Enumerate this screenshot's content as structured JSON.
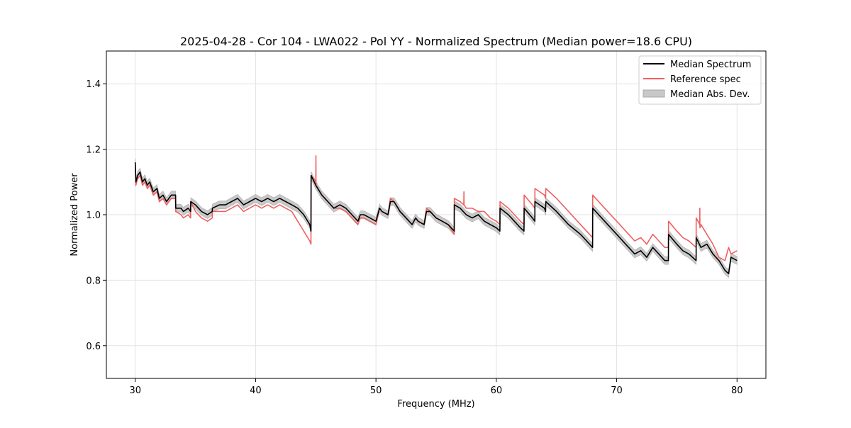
{
  "chart_data": {
    "type": "line",
    "title": "2025-04-28 - Cor 104 - LWA022 - Pol YY - Normalized Spectrum (Median power=18.6 CPU)",
    "xlabel": "Frequency (MHz)",
    "ylabel": "Normalized Power",
    "xlim": [
      27.6,
      82.4
    ],
    "ylim": [
      0.5,
      1.5
    ],
    "xticks": [
      30,
      40,
      50,
      60,
      70,
      80
    ],
    "yticks": [
      0.6,
      0.8,
      1.0,
      1.2,
      1.4
    ],
    "xtick_labels": [
      "30",
      "40",
      "50",
      "60",
      "70",
      "80"
    ],
    "ytick_labels": [
      "0.6",
      "0.8",
      "1.0",
      "1.2",
      "1.4"
    ],
    "grid": true,
    "legend_position": "top-right",
    "legend": [
      "Median Spectrum",
      "Reference spec",
      "Median Abs. Dev."
    ],
    "colors": {
      "median": "#000000",
      "reference": "#f06060",
      "mad_fill": "#c8c8c8",
      "mad_edge": "#a8a8a8",
      "grid": "#e3e3e3"
    },
    "series": [
      {
        "name": "Median Spectrum",
        "x": [
          30.0,
          30.05,
          30.2,
          30.4,
          30.6,
          30.8,
          31.0,
          31.2,
          31.5,
          31.8,
          32.0,
          32.3,
          32.6,
          32.8,
          33.0,
          33.35,
          33.36,
          33.8,
          34.0,
          34.4,
          34.6,
          34.61,
          35.0,
          35.5,
          36.0,
          36.4,
          36.41,
          37.0,
          37.5,
          38.0,
          38.5,
          39.0,
          39.5,
          40.0,
          40.5,
          41.0,
          41.5,
          42.0,
          42.5,
          43.0,
          43.5,
          44.0,
          44.5,
          44.6,
          44.61,
          45.0,
          45.5,
          46.0,
          46.5,
          47.0,
          47.5,
          48.0,
          48.5,
          48.7,
          49.0,
          49.5,
          50.0,
          50.3,
          50.5,
          51.0,
          51.2,
          51.5,
          52.0,
          52.5,
          53.0,
          53.3,
          53.5,
          54.0,
          54.2,
          54.5,
          55.0,
          55.5,
          56.0,
          56.5,
          56.51,
          57.0,
          57.5,
          58.0,
          58.5,
          59.0,
          59.5,
          60.0,
          60.3,
          60.31,
          61.0,
          61.5,
          62.0,
          62.3,
          62.31,
          63.0,
          63.2,
          63.21,
          64.0,
          64.1,
          64.11,
          65.0,
          66.0,
          67.0,
          68.0,
          68.01,
          69.0,
          70.0,
          71.0,
          71.5,
          72.0,
          72.5,
          73.0,
          73.5,
          74.0,
          74.3,
          74.31,
          75.0,
          75.5,
          76.0,
          76.6,
          76.61,
          77.0,
          77.5,
          78.0,
          78.5,
          79.0,
          79.3,
          79.5,
          80.0
        ],
        "values": [
          1.16,
          1.1,
          1.12,
          1.13,
          1.1,
          1.11,
          1.09,
          1.1,
          1.07,
          1.08,
          1.05,
          1.06,
          1.04,
          1.05,
          1.06,
          1.06,
          1.02,
          1.02,
          1.01,
          1.02,
          1.01,
          1.04,
          1.03,
          1.01,
          1.0,
          1.01,
          1.02,
          1.03,
          1.03,
          1.04,
          1.05,
          1.03,
          1.04,
          1.05,
          1.04,
          1.05,
          1.04,
          1.05,
          1.04,
          1.03,
          1.02,
          1.0,
          0.97,
          0.95,
          1.12,
          1.09,
          1.06,
          1.04,
          1.02,
          1.03,
          1.02,
          1.0,
          0.98,
          1.0,
          1.0,
          0.99,
          0.98,
          1.02,
          1.01,
          1.0,
          1.04,
          1.04,
          1.01,
          0.99,
          0.97,
          0.99,
          0.98,
          0.97,
          1.01,
          1.01,
          0.99,
          0.98,
          0.97,
          0.95,
          1.03,
          1.02,
          1.0,
          0.99,
          1.0,
          0.98,
          0.97,
          0.96,
          0.95,
          1.02,
          1.0,
          0.98,
          0.96,
          0.95,
          1.02,
          0.99,
          0.98,
          1.04,
          1.02,
          1.01,
          1.04,
          1.01,
          0.97,
          0.94,
          0.9,
          1.02,
          0.98,
          0.94,
          0.9,
          0.88,
          0.89,
          0.87,
          0.9,
          0.88,
          0.86,
          0.86,
          0.94,
          0.91,
          0.89,
          0.88,
          0.86,
          0.93,
          0.9,
          0.91,
          0.88,
          0.86,
          0.83,
          0.82,
          0.87,
          0.86
        ]
      },
      {
        "name": "Reference spec",
        "x": [
          30.0,
          30.05,
          30.2,
          30.4,
          30.6,
          30.8,
          31.0,
          31.2,
          31.5,
          31.8,
          32.0,
          32.3,
          32.6,
          32.8,
          33.0,
          33.35,
          33.36,
          33.8,
          34.0,
          34.4,
          34.6,
          34.61,
          35.0,
          35.5,
          36.0,
          36.4,
          36.41,
          37.0,
          37.5,
          38.0,
          38.5,
          39.0,
          39.5,
          40.0,
          40.5,
          41.0,
          41.5,
          42.0,
          42.5,
          43.0,
          43.5,
          44.0,
          44.5,
          44.6,
          44.61,
          45.0,
          45.01,
          45.02,
          45.5,
          46.0,
          46.5,
          47.0,
          47.5,
          48.0,
          48.5,
          48.7,
          49.0,
          49.5,
          50.0,
          50.3,
          50.5,
          51.0,
          51.2,
          51.5,
          52.0,
          52.5,
          53.0,
          53.3,
          53.5,
          54.0,
          54.2,
          54.5,
          55.0,
          55.5,
          56.0,
          56.5,
          56.51,
          57.0,
          57.3,
          57.31,
          57.32,
          57.5,
          58.0,
          58.5,
          59.0,
          59.5,
          60.0,
          60.3,
          60.31,
          61.0,
          61.5,
          62.0,
          62.3,
          62.31,
          63.0,
          63.2,
          63.21,
          64.0,
          64.1,
          64.11,
          65.0,
          66.0,
          67.0,
          68.0,
          68.01,
          69.0,
          70.0,
          71.0,
          71.5,
          72.0,
          72.5,
          73.0,
          73.5,
          74.0,
          74.3,
          74.31,
          75.0,
          75.5,
          76.0,
          76.6,
          76.61,
          76.9,
          76.91,
          76.92,
          77.0,
          77.5,
          78.0,
          78.5,
          79.0,
          79.3,
          79.5,
          80.0
        ],
        "values": [
          1.16,
          1.09,
          1.11,
          1.12,
          1.09,
          1.1,
          1.08,
          1.09,
          1.06,
          1.07,
          1.04,
          1.05,
          1.03,
          1.04,
          1.05,
          1.05,
          1.01,
          1.0,
          0.99,
          1.0,
          0.99,
          1.04,
          1.01,
          0.99,
          0.98,
          0.99,
          1.01,
          1.01,
          1.01,
          1.02,
          1.03,
          1.01,
          1.02,
          1.03,
          1.02,
          1.03,
          1.02,
          1.03,
          1.02,
          1.01,
          0.98,
          0.95,
          0.92,
          0.91,
          1.12,
          1.1,
          1.18,
          1.09,
          1.06,
          1.04,
          1.02,
          1.02,
          1.01,
          0.99,
          0.97,
          0.99,
          0.99,
          0.98,
          0.97,
          1.02,
          1.01,
          1.0,
          1.05,
          1.04,
          1.01,
          0.99,
          0.97,
          0.99,
          0.98,
          0.97,
          1.02,
          1.01,
          0.99,
          0.98,
          0.97,
          0.94,
          1.05,
          1.04,
          1.03,
          1.07,
          1.03,
          1.02,
          1.02,
          1.01,
          1.01,
          0.99,
          0.98,
          0.97,
          1.04,
          1.02,
          1.0,
          0.98,
          0.97,
          1.06,
          1.03,
          1.02,
          1.08,
          1.06,
          1.05,
          1.08,
          1.05,
          1.01,
          0.97,
          0.93,
          1.06,
          1.02,
          0.98,
          0.94,
          0.92,
          0.93,
          0.91,
          0.94,
          0.92,
          0.9,
          0.9,
          0.98,
          0.95,
          0.93,
          0.92,
          0.9,
          0.99,
          0.97,
          1.02,
          0.96,
          0.97,
          0.94,
          0.91,
          0.87,
          0.86,
          0.9,
          0.88,
          0.89
        ]
      }
    ],
    "mad_band_halfwidth": 0.012
  }
}
